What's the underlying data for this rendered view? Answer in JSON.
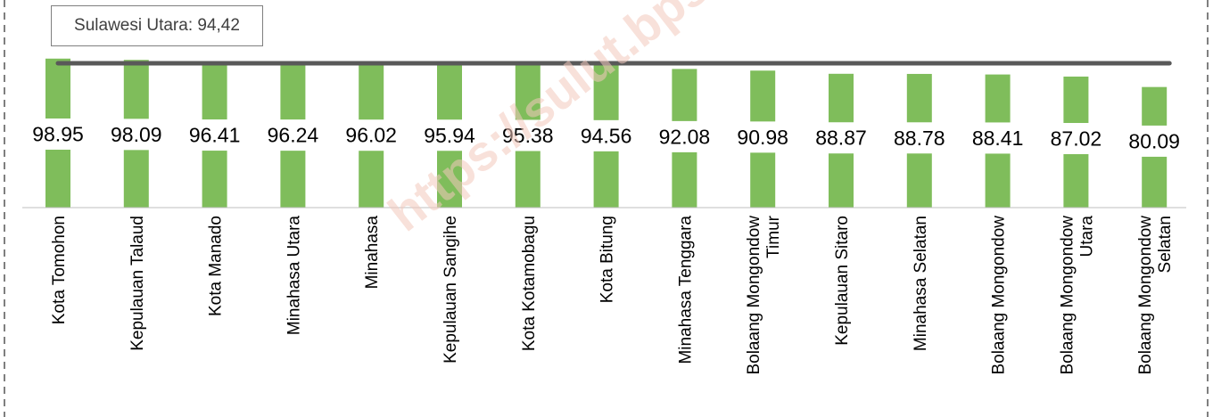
{
  "chart_data": {
    "type": "bar",
    "categories": [
      [
        "Kota Tomohon"
      ],
      [
        "Kepulauan Talaud"
      ],
      [
        "Kota Manado"
      ],
      [
        "Minahasa Utara"
      ],
      [
        "Minahasa"
      ],
      [
        "Kepulauan Sangihe"
      ],
      [
        "Kota Kotamobagu"
      ],
      [
        "Kota Bitung"
      ],
      [
        "Minahasa Tenggara"
      ],
      [
        "Bolaang Mongondow",
        "Timur"
      ],
      [
        "Kepulauan Sitaro"
      ],
      [
        "Minahasa Selatan"
      ],
      [
        "Bolaang Mongondow"
      ],
      [
        "Bolaang Mongondow",
        "Utara"
      ],
      [
        "Bolaang Mongondow",
        "Selatan"
      ]
    ],
    "values": [
      98.95,
      98.09,
      96.41,
      96.24,
      96.02,
      95.94,
      95.38,
      94.56,
      92.08,
      90.98,
      88.87,
      88.78,
      88.41,
      87.02,
      80.09
    ],
    "value_labels": [
      "98.95",
      "98.09",
      "96.41",
      "96.24",
      "96.02",
      "95.94",
      "95.38",
      "94.56",
      "92.08",
      "90.98",
      "88.87",
      "88.78",
      "88.41",
      "87.02",
      "80.09"
    ],
    "reference_line": {
      "label": "Sulawesi Utara: 94,42",
      "value": 94.42
    },
    "ylim": [
      0,
      100
    ],
    "grid": false,
    "bar_color": "#7fbd5b",
    "reference_line_color": "#595959"
  },
  "watermark": "https://sulut.bps.go.id"
}
